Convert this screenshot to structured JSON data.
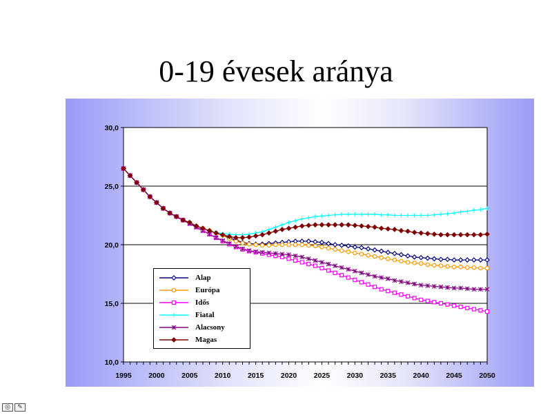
{
  "slide": {
    "title": "0-19 évesek aránya"
  },
  "chart_data": {
    "type": "line",
    "title": "",
    "xlabel": "",
    "ylabel": "",
    "x": [
      1995,
      1996,
      1997,
      1998,
      1999,
      2000,
      2001,
      2002,
      2003,
      2004,
      2005,
      2006,
      2007,
      2008,
      2009,
      2010,
      2011,
      2012,
      2013,
      2014,
      2015,
      2016,
      2017,
      2018,
      2019,
      2020,
      2021,
      2022,
      2023,
      2024,
      2025,
      2026,
      2027,
      2028,
      2029,
      2030,
      2031,
      2032,
      2033,
      2034,
      2035,
      2036,
      2037,
      2038,
      2039,
      2040,
      2041,
      2042,
      2043,
      2044,
      2045,
      2046,
      2047,
      2048,
      2049,
      2050
    ],
    "xticks": [
      "1995",
      "2000",
      "2005",
      "2010",
      "2015",
      "2020",
      "2025",
      "2030",
      "2035",
      "2040",
      "2045",
      "2050"
    ],
    "yticks": [
      "10,0",
      "15,0",
      "20,0",
      "25,0",
      "30,0"
    ],
    "ylim": [
      10,
      30
    ],
    "grid": "horizontal",
    "legend_position": "lower-left inside",
    "series": [
      {
        "name": "Alap",
        "color": "#000080",
        "marker": "diamond-open",
        "values": [
          26.5,
          25.9,
          25.3,
          24.7,
          24.1,
          23.6,
          23.1,
          22.7,
          22.4,
          22.1,
          21.9,
          21.6,
          21.4,
          21.2,
          21.0,
          20.8,
          20.6,
          20.4,
          20.2,
          20.1,
          20.05,
          20.05,
          20.1,
          20.15,
          20.2,
          20.25,
          20.3,
          20.3,
          20.3,
          20.25,
          20.2,
          20.1,
          20.0,
          19.95,
          19.9,
          19.8,
          19.75,
          19.65,
          19.55,
          19.45,
          19.35,
          19.25,
          19.15,
          19.05,
          18.95,
          18.9,
          18.85,
          18.8,
          18.75,
          18.75,
          18.7,
          18.7,
          18.7,
          18.7,
          18.7,
          18.7
        ]
      },
      {
        "name": "Európa",
        "color": "#ff9900",
        "marker": "circle-open",
        "values": [
          26.5,
          25.9,
          25.3,
          24.7,
          24.1,
          23.6,
          23.1,
          22.7,
          22.4,
          22.1,
          21.9,
          21.6,
          21.4,
          21.2,
          21.0,
          20.8,
          20.5,
          20.3,
          20.15,
          20.05,
          20.0,
          19.95,
          19.95,
          20.0,
          20.0,
          20.0,
          20.0,
          20.0,
          19.95,
          19.9,
          19.8,
          19.7,
          19.6,
          19.5,
          19.4,
          19.3,
          19.2,
          19.1,
          19.0,
          18.9,
          18.8,
          18.7,
          18.6,
          18.5,
          18.45,
          18.4,
          18.3,
          18.25,
          18.2,
          18.15,
          18.1,
          18.1,
          18.05,
          18.05,
          18.0,
          18.0
        ]
      },
      {
        "name": "Idős",
        "color": "#ff00ff",
        "marker": "square-open",
        "values": [
          26.5,
          25.9,
          25.3,
          24.7,
          24.1,
          23.6,
          23.1,
          22.7,
          22.4,
          22.1,
          21.8,
          21.5,
          21.2,
          20.9,
          20.6,
          20.3,
          20.05,
          19.8,
          19.6,
          19.45,
          19.35,
          19.25,
          19.15,
          19.05,
          18.95,
          18.8,
          18.65,
          18.5,
          18.35,
          18.2,
          18.0,
          17.8,
          17.6,
          17.4,
          17.2,
          17.0,
          16.8,
          16.6,
          16.4,
          16.2,
          16.05,
          15.9,
          15.75,
          15.6,
          15.45,
          15.3,
          15.2,
          15.1,
          15.0,
          14.9,
          14.8,
          14.7,
          14.6,
          14.5,
          14.4,
          14.3
        ]
      },
      {
        "name": "Fiatal",
        "color": "#00ffff",
        "marker": "plus",
        "values": [
          26.5,
          25.9,
          25.3,
          24.7,
          24.1,
          23.6,
          23.1,
          22.7,
          22.4,
          22.1,
          21.9,
          21.6,
          21.4,
          21.2,
          21.05,
          20.95,
          20.9,
          20.85,
          20.85,
          20.9,
          21.0,
          21.1,
          21.3,
          21.5,
          21.7,
          21.9,
          22.05,
          22.2,
          22.3,
          22.4,
          22.45,
          22.5,
          22.55,
          22.6,
          22.6,
          22.6,
          22.6,
          22.6,
          22.6,
          22.55,
          22.55,
          22.5,
          22.5,
          22.5,
          22.5,
          22.5,
          22.5,
          22.55,
          22.6,
          22.65,
          22.7,
          22.8,
          22.85,
          22.95,
          23.0,
          23.1
        ]
      },
      {
        "name": "Alacsony",
        "color": "#800080",
        "marker": "asterisk",
        "values": [
          26.5,
          25.9,
          25.3,
          24.7,
          24.1,
          23.6,
          23.1,
          22.7,
          22.4,
          22.1,
          21.8,
          21.5,
          21.2,
          20.9,
          20.6,
          20.35,
          20.1,
          19.85,
          19.65,
          19.5,
          19.4,
          19.35,
          19.3,
          19.25,
          19.2,
          19.15,
          19.05,
          18.95,
          18.8,
          18.65,
          18.5,
          18.35,
          18.2,
          18.05,
          17.9,
          17.75,
          17.6,
          17.45,
          17.3,
          17.2,
          17.1,
          16.95,
          16.85,
          16.75,
          16.65,
          16.55,
          16.5,
          16.45,
          16.4,
          16.35,
          16.3,
          16.3,
          16.25,
          16.2,
          16.2,
          16.2
        ]
      },
      {
        "name": "Magas",
        "color": "#800000",
        "marker": "diamond-filled",
        "values": [
          26.5,
          25.9,
          25.3,
          24.7,
          24.1,
          23.6,
          23.1,
          22.7,
          22.4,
          22.1,
          21.9,
          21.6,
          21.4,
          21.2,
          21.0,
          20.85,
          20.7,
          20.6,
          20.6,
          20.65,
          20.75,
          20.85,
          21.0,
          21.15,
          21.3,
          21.4,
          21.5,
          21.6,
          21.65,
          21.7,
          21.7,
          21.7,
          21.7,
          21.7,
          21.7,
          21.65,
          21.6,
          21.55,
          21.5,
          21.4,
          21.35,
          21.3,
          21.2,
          21.15,
          21.05,
          21.0,
          20.95,
          20.9,
          20.85,
          20.85,
          20.85,
          20.85,
          20.85,
          20.85,
          20.85,
          20.9
        ]
      }
    ]
  }
}
